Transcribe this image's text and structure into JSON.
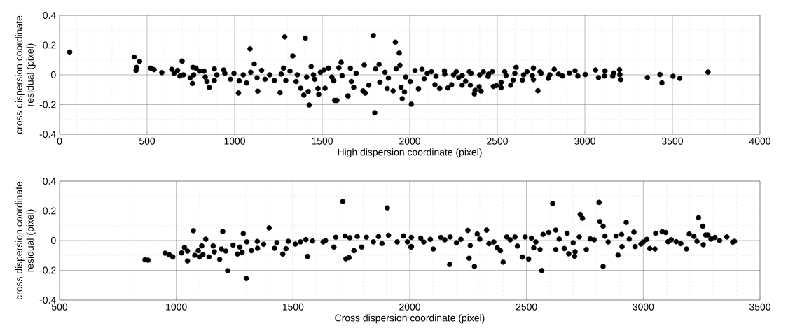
{
  "chart_data": [
    {
      "type": "scatter",
      "xlabel": "High dispersion coordinate (pixel)",
      "ylabel": "cross dispersion coordinate residual (pixel)",
      "xlim": [
        0,
        4000
      ],
      "ylim": [
        -0.4,
        0.4
      ],
      "xticks": [
        0,
        500,
        1000,
        1500,
        2000,
        2500,
        3000,
        3500,
        4000
      ],
      "yticks": [
        -0.4,
        -0.2,
        0,
        0.2,
        0.4
      ],
      "grid": true,
      "marker": "circle",
      "series": [
        {
          "color": "#000000",
          "x": [
            58,
            426,
            457,
            440,
            437,
            520,
            540,
            584,
            641,
            654,
            674,
            687,
            700,
            707,
            746,
            759,
            762,
            766,
            779,
            799,
            825,
            832,
            842,
            855,
            884,
            884,
            898,
            937,
            944,
            976,
            996,
            1022,
            1026,
            1049,
            1068,
            1088,
            1092,
            1112,
            1128,
            1132,
            1154,
            1174,
            1200,
            1227,
            1259,
            1266,
            1279,
            1286,
            1292,
            1316,
            1332,
            1351,
            1358,
            1377,
            1395,
            1404,
            1411,
            1420,
            1426,
            1437,
            1450,
            1457,
            1476,
            1480,
            1490,
            1510,
            1516,
            1536,
            1555,
            1566,
            1571,
            1584,
            1595,
            1608,
            1614,
            1647,
            1661,
            1667,
            1680,
            1694,
            1733,
            1740,
            1746,
            1766,
            1792,
            1800,
            1805,
            1825,
            1829,
            1858,
            1871,
            1878,
            1905,
            1918,
            1922,
            1940,
            1944,
            1950,
            1957,
            1970,
            1977,
            2009,
            2003,
            2030,
            2050,
            2070,
            2083,
            2124,
            2144,
            2171,
            2198,
            2218,
            2239,
            2266,
            2279,
            2299,
            2319,
            2340,
            2346,
            2369,
            2373,
            2396,
            2407,
            2420,
            2447,
            2472,
            2477,
            2495,
            2522,
            2522,
            2542,
            2576,
            2590,
            2607,
            2643,
            2670,
            2706,
            2706,
            2732,
            2744,
            2791,
            2825,
            2872,
            2912,
            2944,
            2960,
            3003,
            3061,
            3078,
            3115,
            3112,
            3159,
            3165,
            3198,
            3200,
            3205,
            3357,
            3429,
            3440,
            3503,
            3542,
            3703,
            2100,
            2150,
            2200,
            2250,
            2300,
            2350,
            2400,
            2450,
            2550,
            2600,
            2650,
            2700,
            2750,
            2800,
            2850
          ],
          "values": [
            0.153,
            0.12,
            0.09,
            0.05,
            0.03,
            0.045,
            0.035,
            0.015,
            0.037,
            0.01,
            0.03,
            -0.008,
            0.092,
            0,
            -0.02,
            -0.058,
            0.05,
            0,
            0.045,
            0.025,
            0.025,
            -0.015,
            -0.045,
            -0.085,
            0.04,
            -0.038,
            0,
            0.033,
            0.01,
            -0.03,
            0.01,
            -0.122,
            -0.04,
            0,
            -0.055,
            0.175,
            0.017,
            0.073,
            -0.02,
            -0.11,
            0.03,
            -0.03,
            0,
            -0.038,
            -0.12,
            0.005,
            0.045,
            0.255,
            -0.038,
            0.025,
            0.127,
            -0.045,
            0,
            -0.09,
            -0.136,
            0.247,
            -0.015,
            -0.112,
            -0.203,
            0.056,
            0,
            -0.03,
            -0.092,
            -0.131,
            0.017,
            0.033,
            -0.09,
            0.045,
            -0.015,
            -0.04,
            -0.172,
            -0.172,
            0.048,
            0.084,
            -0.006,
            -0.142,
            0.044,
            -0.045,
            -0.084,
            0.01,
            -0.108,
            0.066,
            -0.123,
            -0.07,
            0.264,
            -0.255,
            0.04,
            0.07,
            -0.05,
            0.017,
            -0.092,
            -0.022,
            -0.108,
            0.22,
            0.04,
            0.147,
            0.064,
            -0.084,
            -0.16,
            -0.115,
            -0.015,
            -0.197,
            -0.045,
            0.029,
            -0.094,
            0.037,
            -0.027,
            0.021,
            -0.067,
            -0.091,
            0.026,
            -0.088,
            -0.067,
            0.021,
            -0.019,
            -0.07,
            -0.043,
            0.021,
            -0.07,
            -0.128,
            -0.104,
            -0.08,
            -0.11,
            0.021,
            -0.011,
            0.021,
            -0.078,
            -0.072,
            -0.051,
            -0.086,
            0.021,
            -0.07,
            -0.035,
            0.05,
            -0.035,
            0.021,
            0.045,
            -0.032,
            -0.107,
            0.021,
            -0.024,
            0.037,
            -0.008,
            0.013,
            0.027,
            -0.008,
            0.002,
            0.032,
            -0.019,
            0.026,
            -0.008,
            -0.008,
            0.013,
            0.034,
            0.002,
            -0.032,
            -0.018,
            0.002,
            -0.054,
            -0.01,
            -0.024,
            0.018,
            0.01,
            -0.01,
            0.005,
            0,
            -0.005,
            0.01,
            0,
            0.005,
            -0.005,
            0.01,
            0,
            -0.005,
            0.01,
            0,
            0.005
          ]
        }
      ]
    },
    {
      "type": "scatter",
      "xlabel": "Cross dispersion coordinate (pixel)",
      "ylabel": "cross dispersion coordinate residual (pixel)",
      "xlim": [
        500,
        3500
      ],
      "ylim": [
        -0.4,
        0.4
      ],
      "xticks": [
        500,
        1000,
        1500,
        2000,
        2500,
        3000,
        3500
      ],
      "yticks": [
        -0.4,
        -0.2,
        0,
        0.2,
        0.4
      ],
      "grid": true,
      "marker": "circle",
      "series": [
        {
          "color": "#000000",
          "x": [
            866,
            879,
            952,
            970,
            985,
            1023,
            1035,
            1048,
            1048,
            1073,
            1079,
            1094,
            1099,
            1109,
            1114,
            1126,
            1140,
            1158,
            1163,
            1186,
            1193,
            1199,
            1212,
            1220,
            1243,
            1262,
            1272,
            1282,
            1287,
            1300,
            1302,
            1322,
            1347,
            1348,
            1374,
            1398,
            1421,
            1431,
            1456,
            1470,
            1480,
            1510,
            1532,
            1555,
            1562,
            1584,
            1629,
            1639,
            1675,
            1683,
            1713,
            1726,
            1740,
            1723,
            1743,
            1761,
            1775,
            1794,
            1814,
            1844,
            1866,
            1881,
            1904,
            1909,
            1946,
            1973,
            1990,
            2005,
            2007,
            2007,
            2047,
            2088,
            2101,
            2133,
            2171,
            2173,
            2219,
            2249,
            2254,
            2259,
            2277,
            2289,
            2329,
            2339,
            2375,
            2388,
            2400,
            2415,
            2451,
            2461,
            2482,
            2494,
            2509,
            2521,
            2531,
            2558,
            2565,
            2571,
            2595,
            2612,
            2625,
            2625,
            2662,
            2674,
            2681,
            2706,
            2708,
            2726,
            2730,
            2740,
            2756,
            2773,
            2811,
            2814,
            2828,
            2828,
            2836,
            2884,
            2892,
            2907,
            2909,
            2927,
            2960,
            2965,
            2990,
            3015,
            3028,
            3050,
            3053,
            3081,
            3096,
            3106,
            3141,
            3161,
            3185,
            3197,
            3217,
            3237,
            3255,
            3257,
            3267,
            3277,
            3307,
            3327,
            3358,
            3383,
            3391,
            2060,
            2150,
            2200,
            2300,
            2360,
            2430,
            2540,
            2640,
            2700,
            2790,
            2850,
            2940,
            3000,
            3120,
            3230,
            3290
          ],
          "values": [
            -0.129,
            -0.132,
            -0.085,
            -0.096,
            -0.11,
            -0.083,
            -0.047,
            -0.071,
            -0.137,
            0.066,
            -0.099,
            -0.068,
            -0.11,
            -0.036,
            -0.094,
            0.009,
            -0.11,
            -0.036,
            -0.076,
            -0.126,
            -0.057,
            0.061,
            -0.071,
            -0.203,
            -0.031,
            -0.091,
            -0.044,
            -0.079,
            0.047,
            -0.255,
            -0.009,
            -0.068,
            -0.006,
            -0.052,
            -0.025,
            0.085,
            -0.052,
            -0.013,
            -0.091,
            -0.055,
            -0.005,
            -0.024,
            -0.009,
            0.006,
            -0.107,
            -0.003,
            -0.009,
            0,
            -0.044,
            0.022,
            0.263,
            -0.123,
            -0.115,
            0.03,
            0.019,
            -0.068,
            0.027,
            -0.044,
            0.022,
            -0.009,
            0.027,
            -0.02,
            0.22,
            0.035,
            -0.009,
            0.031,
            -0.009,
            -0.044,
            0.021,
            -0.041,
            0.016,
            0.008,
            -0.057,
            0.021,
            -0.161,
            0.024,
            0.008,
            0.068,
            -0.119,
            -0.033,
            -0.174,
            0.044,
            0.07,
            -0.021,
            -0.049,
            -0.068,
            -0.145,
            0.024,
            0.024,
            -0.037,
            -0.111,
            0.024,
            -0.124,
            0.016,
            -0.049,
            -0.06,
            -0.202,
            0.041,
            0.054,
            0.249,
            0.07,
            -0.06,
            -0.054,
            0.049,
            -0.089,
            -0.106,
            -0.076,
            0.024,
            0.176,
            0.15,
            -0.06,
            0.011,
            0.257,
            0.128,
            0.096,
            -0.174,
            0.029,
            0.029,
            -0.098,
            0.041,
            -0.041,
            0.122,
            0.057,
            -0.041,
            -0.024,
            0.008,
            -0.054,
            -0.057,
            0.049,
            0.06,
            0.054,
            -0.008,
            -0.008,
            -0.021,
            -0.057,
            0.044,
            0.028,
            0.154,
            0.096,
            -0.028,
            0.037,
            0.037,
            0.021,
            0,
            0.024,
            -0.011,
            -0.005,
            -0.01,
            0.005,
            -0.015,
            0.01,
            -0.01,
            0.005,
            -0.01,
            0.01,
            -0.015,
            0.005,
            -0.01,
            0.01,
            -0.01,
            0.005,
            -0.005,
            0.01
          ]
        }
      ]
    }
  ]
}
